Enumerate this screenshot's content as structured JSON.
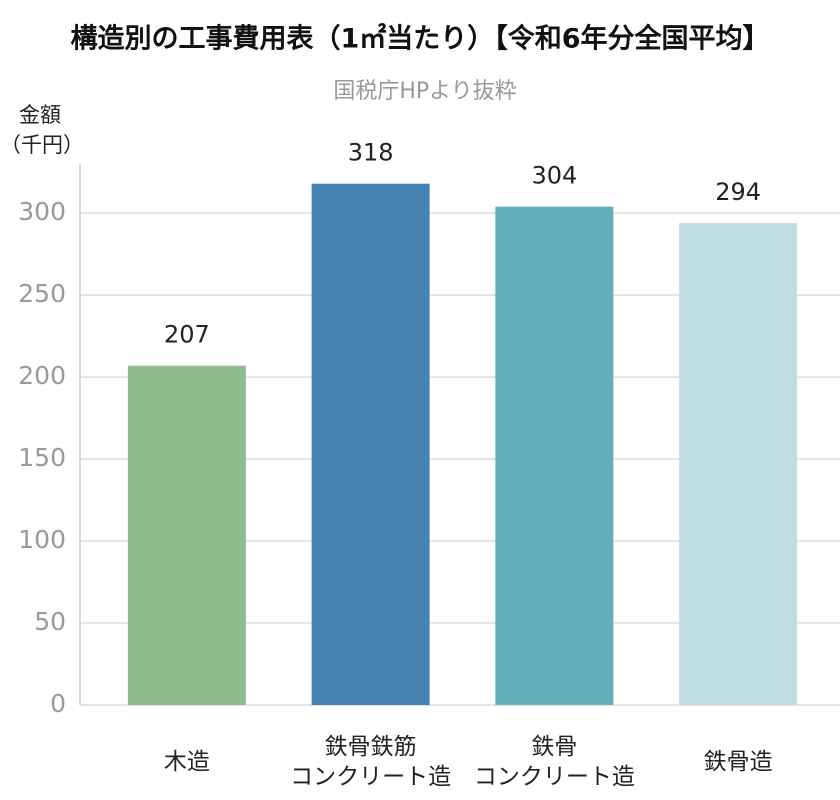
{
  "chart_data": {
    "type": "bar",
    "title": "構造別の工事費用表（1㎡当たり）【令和6年分全国平均】",
    "subtitle": "国税庁HPより抜粋",
    "y_label": "金額\n（千円）",
    "categories": [
      "木造",
      "鉄骨鉄筋\nコンクリート造",
      "鉄骨\nコンクリート造",
      "鉄骨造"
    ],
    "values": [
      207,
      318,
      304,
      294
    ],
    "colors": [
      "#8fbc8b",
      "#4682b4",
      "#62b0bc",
      "#c0dde2"
    ],
    "ylim": [
      0,
      330
    ],
    "yticks": [
      0,
      50,
      100,
      150,
      200,
      250,
      300
    ],
    "grid": true
  }
}
